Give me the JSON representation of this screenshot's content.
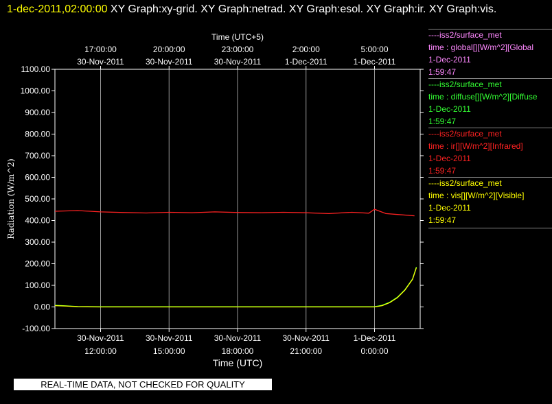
{
  "header": {
    "timestamp": "1-dec-2011,02:00:00",
    "graphs": "  XY Graph:xy-grid.  XY Graph:netrad.  XY Graph:esol.  XY Graph:ir.  XY Graph:vis."
  },
  "legend": [
    {
      "source": "----iss2/surface_met",
      "var": "time : global[][W/m^2][Global",
      "date": "1-Dec-2011",
      "time": "1:59:47",
      "color": "#ff88ff"
    },
    {
      "source": "----iss2/surface_met",
      "var": "time : diffuse[][W/m^2][Diffuse",
      "date": "1-Dec-2011",
      "time": "1:59:47",
      "color": "#33ff33"
    },
    {
      "source": "----iss2/surface_met",
      "var": "time : ir[][W/m^2][Infrared]",
      "date": "1-Dec-2011",
      "time": "1:59:47",
      "color": "#ff2222"
    },
    {
      "source": "----iss2/surface_met",
      "var": "time : vis[][W/m^2][Visible]",
      "date": "1-Dec-2011",
      "time": "1:59:47",
      "color": "#ffff00"
    }
  ],
  "qc_notice": "REAL-TIME DATA, NOT CHECKED FOR QUALITY",
  "chart_data": {
    "type": "line",
    "xlabel": "Time (UTC)",
    "x2label": "Time (UTC+5)",
    "ylabel": "Radiation (W/m^2)",
    "xlim": [
      "30-Nov-2011 10:00",
      "1-Dec-2011 02:00"
    ],
    "ylim": [
      -100,
      1100
    ],
    "yticks": [
      "-100.00",
      "0.00",
      "100.00",
      "200.00",
      "300.00",
      "400.00",
      "500.00",
      "600.00",
      "700.00",
      "800.00",
      "900.00",
      "1000.00",
      "1100.00"
    ],
    "xticks": [
      {
        "t": "30-Nov-2011 12:00",
        "line1": "30-Nov-2011",
        "line2": "12:00:00"
      },
      {
        "t": "30-Nov-2011 15:00",
        "line1": "30-Nov-2011",
        "line2": "15:00:00"
      },
      {
        "t": "30-Nov-2011 18:00",
        "line1": "30-Nov-2011",
        "line2": "18:00:00"
      },
      {
        "t": "30-Nov-2011 21:00",
        "line1": "30-Nov-2011",
        "line2": "21:00:00"
      },
      {
        "t": "1-Dec-2011 00:00",
        "line1": "1-Dec-2011",
        "line2": "0:00:00"
      }
    ],
    "x2ticks": [
      {
        "t": "30-Nov-2011 12:00",
        "line1": "17:00:00",
        "line2": "30-Nov-2011"
      },
      {
        "t": "30-Nov-2011 15:00",
        "line1": "20:00:00",
        "line2": "30-Nov-2011"
      },
      {
        "t": "30-Nov-2011 18:00",
        "line1": "23:00:00",
        "line2": "30-Nov-2011"
      },
      {
        "t": "30-Nov-2011 21:00",
        "line1": "2:00:00",
        "line2": "1-Dec-2011"
      },
      {
        "t": "1-Dec-2011 00:00",
        "line1": "5:00:00",
        "line2": "1-Dec-2011"
      }
    ],
    "grid": "vertical",
    "series": [
      {
        "name": "ir",
        "color": "#ff2222",
        "x": [
          "30-Nov-2011 10:00",
          "30-Nov-2011 11:00",
          "30-Nov-2011 12:00",
          "30-Nov-2011 13:00",
          "30-Nov-2011 14:00",
          "30-Nov-2011 15:00",
          "30-Nov-2011 16:00",
          "30-Nov-2011 17:00",
          "30-Nov-2011 18:00",
          "30-Nov-2011 19:00",
          "30-Nov-2011 20:00",
          "30-Nov-2011 21:00",
          "30-Nov-2011 22:00",
          "30-Nov-2011 23:00",
          "30-Nov-2011 23:45",
          "1-Dec-2011 00:00",
          "1-Dec-2011 00:30",
          "1-Dec-2011 01:00",
          "1-Dec-2011 01:45"
        ],
        "values": [
          443,
          446,
          440,
          437,
          435,
          438,
          436,
          440,
          437,
          436,
          438,
          436,
          432,
          438,
          434,
          452,
          432,
          428,
          422
        ]
      },
      {
        "name": "diffuse",
        "color": "#33ff33",
        "x": [
          "30-Nov-2011 10:00",
          "30-Nov-2011 10:30",
          "30-Nov-2011 11:00",
          "30-Nov-2011 12:00",
          "30-Nov-2011 15:00",
          "30-Nov-2011 18:00",
          "30-Nov-2011 21:00",
          "1-Dec-2011 00:00",
          "1-Dec-2011 00:20",
          "1-Dec-2011 00:40",
          "1-Dec-2011 01:00",
          "1-Dec-2011 01:20",
          "1-Dec-2011 01:40",
          "1-Dec-2011 01:50"
        ],
        "values": [
          8,
          5,
          2,
          1,
          1,
          1,
          1,
          1,
          8,
          22,
          45,
          80,
          130,
          185
        ]
      },
      {
        "name": "vis",
        "color": "#ffff00",
        "x": [
          "30-Nov-2011 10:00",
          "30-Nov-2011 10:30",
          "30-Nov-2011 11:00",
          "30-Nov-2011 12:00",
          "30-Nov-2011 15:00",
          "30-Nov-2011 18:00",
          "30-Nov-2011 21:00",
          "1-Dec-2011 00:00",
          "1-Dec-2011 00:20",
          "1-Dec-2011 00:40",
          "1-Dec-2011 01:00",
          "1-Dec-2011 01:20",
          "1-Dec-2011 01:40",
          "1-Dec-2011 01:50"
        ],
        "values": [
          6,
          4,
          1,
          0,
          0,
          0,
          0,
          0,
          6,
          20,
          43,
          78,
          128,
          182
        ]
      }
    ]
  }
}
